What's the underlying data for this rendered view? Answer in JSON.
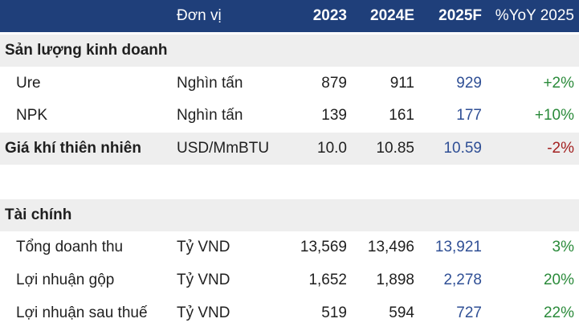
{
  "header": {
    "unit": "Đơn vị",
    "y2023": "2023",
    "y2024": "2024E",
    "y2025": "2025F",
    "yoy": "%YoY 2025"
  },
  "sections": [
    {
      "title": "Sản lượng kinh doanh"
    },
    {
      "title": "Tài chính"
    }
  ],
  "rows": [
    {
      "label": "Ure",
      "unit": "Nghìn tấn",
      "y2023": "879",
      "y2024": "911",
      "y2025": "929",
      "yoy": "+2%"
    },
    {
      "label": "NPK",
      "unit": "Nghìn tấn",
      "y2023": "139",
      "y2024": "161",
      "y2025": "177",
      "yoy": "+10%"
    },
    {
      "label": "Giá khí thiên nhiên",
      "unit": "USD/MmBTU",
      "y2023": "10.0",
      "y2024": "10.85",
      "y2025": "10.59",
      "yoy": "-2%"
    },
    {
      "label": "Tổng doanh thu",
      "unit": "Tỷ VND",
      "y2023": "13,569",
      "y2024": "13,496",
      "y2025": "13,921",
      "yoy": "3%"
    },
    {
      "label": "Lợi nhuận gộp",
      "unit": "Tỷ VND",
      "y2023": "1,652",
      "y2024": "1,898",
      "y2025": "2,278",
      "yoy": "20%"
    },
    {
      "label": "Lợi nhuận sau thuế",
      "unit": "Tỷ VND",
      "y2023": "519",
      "y2024": "594",
      "y2025": "727",
      "yoy": "22%"
    }
  ],
  "colors": {
    "header_bg": "#1f3f7a",
    "shade_bg": "#eeeeee",
    "forecast_value": "#2f4f95",
    "positive": "#2a8a3a",
    "negative": "#a32020"
  }
}
